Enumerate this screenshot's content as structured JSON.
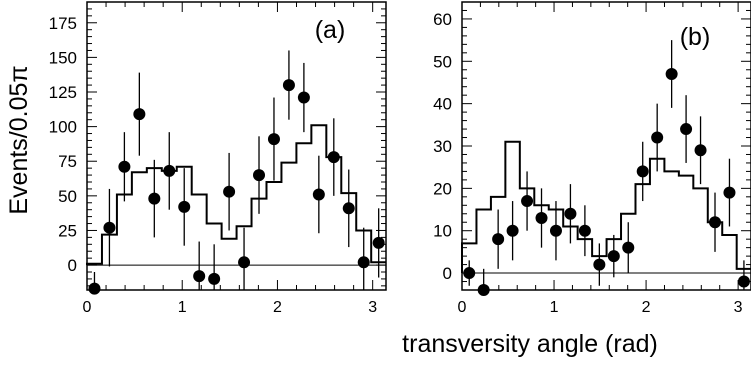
{
  "figure": {
    "ylabel": "Events/0.05π",
    "xlabel": "transversity angle (rad)"
  },
  "chart_data": [
    {
      "type": "scatter",
      "panel_label": "(a)",
      "xlim": [
        0,
        3.14
      ],
      "ylim": [
        -18,
        190
      ],
      "xticks": [
        0,
        1,
        2,
        3
      ],
      "yticks": [
        0,
        25,
        50,
        75,
        100,
        125,
        150,
        175
      ],
      "zero_line": true,
      "grid": false,
      "series": [
        {
          "style": "points-with-errors",
          "x": [
            0.0785,
            0.2356,
            0.3927,
            0.5498,
            0.7069,
            0.8639,
            1.021,
            1.1781,
            1.3352,
            1.4923,
            1.6493,
            1.8064,
            1.9635,
            2.1206,
            2.2777,
            2.4347,
            2.5918,
            2.7489,
            2.906,
            3.0631
          ],
          "y": [
            -17,
            27,
            71,
            109,
            48,
            68,
            42,
            -8,
            -10,
            53,
            2,
            65,
            91,
            130,
            121,
            51,
            78,
            41,
            2,
            16
          ],
          "yerr": [
            12,
            28,
            25,
            30,
            28,
            28,
            28,
            25,
            25,
            28,
            25,
            28,
            30,
            25,
            25,
            28,
            28,
            28,
            25,
            25
          ]
        },
        {
          "style": "histogram",
          "bin_edges": [
            0,
            0.1571,
            0.3142,
            0.4712,
            0.6283,
            0.7854,
            0.9425,
            1.0996,
            1.2566,
            1.4137,
            1.5708,
            1.7279,
            1.885,
            2.042,
            2.1991,
            2.3562,
            2.5133,
            2.6704,
            2.8274,
            2.9845,
            3.1416
          ],
          "values": [
            1,
            22,
            51,
            67,
            70,
            68,
            71,
            51,
            30,
            19,
            28,
            48,
            60,
            74,
            88,
            101,
            78,
            52,
            25,
            2
          ]
        }
      ]
    },
    {
      "type": "scatter",
      "panel_label": "(b)",
      "xlim": [
        0,
        3.14
      ],
      "ylim": [
        -4,
        64
      ],
      "xticks": [
        0,
        1,
        2,
        3
      ],
      "yticks": [
        0,
        10,
        20,
        30,
        40,
        50,
        60
      ],
      "zero_line": true,
      "grid": false,
      "series": [
        {
          "style": "points-with-errors",
          "x": [
            0.0785,
            0.2356,
            0.3927,
            0.5498,
            0.7069,
            0.8639,
            1.021,
            1.1781,
            1.3352,
            1.4923,
            1.6493,
            1.8064,
            1.9635,
            2.1206,
            2.2777,
            2.4347,
            2.5918,
            2.7489,
            2.906,
            3.0631
          ],
          "y": [
            0,
            -4,
            8,
            10,
            17,
            13,
            10,
            14,
            10,
            2,
            4,
            6,
            24,
            32,
            47,
            34,
            29,
            12,
            19,
            -2
          ],
          "yerr": [
            3,
            5,
            7,
            7,
            7,
            7,
            7,
            7,
            6,
            5,
            5,
            6,
            7,
            8,
            8,
            8,
            8,
            7,
            8,
            5
          ]
        },
        {
          "style": "histogram",
          "bin_edges": [
            0,
            0.1571,
            0.3142,
            0.4712,
            0.6283,
            0.7854,
            0.9425,
            1.0996,
            1.2566,
            1.4137,
            1.5708,
            1.7279,
            1.885,
            2.042,
            2.1991,
            2.3562,
            2.5133,
            2.6704,
            2.8274,
            2.9845,
            3.1416
          ],
          "values": [
            7,
            15,
            18,
            31,
            20,
            16,
            15,
            11,
            8,
            4,
            8,
            14,
            21,
            27,
            24,
            23,
            20,
            12,
            9,
            1
          ]
        }
      ]
    }
  ]
}
